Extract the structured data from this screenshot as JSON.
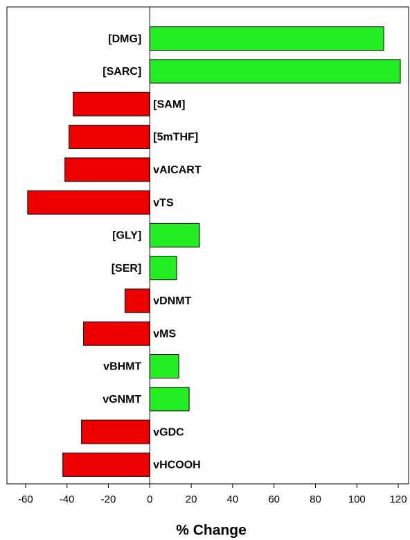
{
  "chart_data": {
    "type": "bar",
    "orientation": "horizontal",
    "x_label": "% Change",
    "categories": [
      "[DMG]",
      "[SARC]",
      "[SAM]",
      "[5mTHF]",
      "vAICART",
      "vTS",
      "[GLY]",
      "[SER]",
      "vDNMT",
      "vMS",
      "vBHMT",
      "vGNMT",
      "vGDC",
      "vHCOOH"
    ],
    "values": [
      113,
      121,
      -37,
      -39,
      -41,
      -59,
      24,
      13,
      -12,
      -32,
      14,
      19,
      -33,
      -42
    ],
    "positive_color": "#22ee22",
    "negative_color": "#ee0000",
    "xlim": [
      -69,
      125
    ],
    "xticks": [
      -60,
      -40,
      -20,
      0,
      20,
      40,
      60,
      80,
      100,
      120
    ]
  }
}
